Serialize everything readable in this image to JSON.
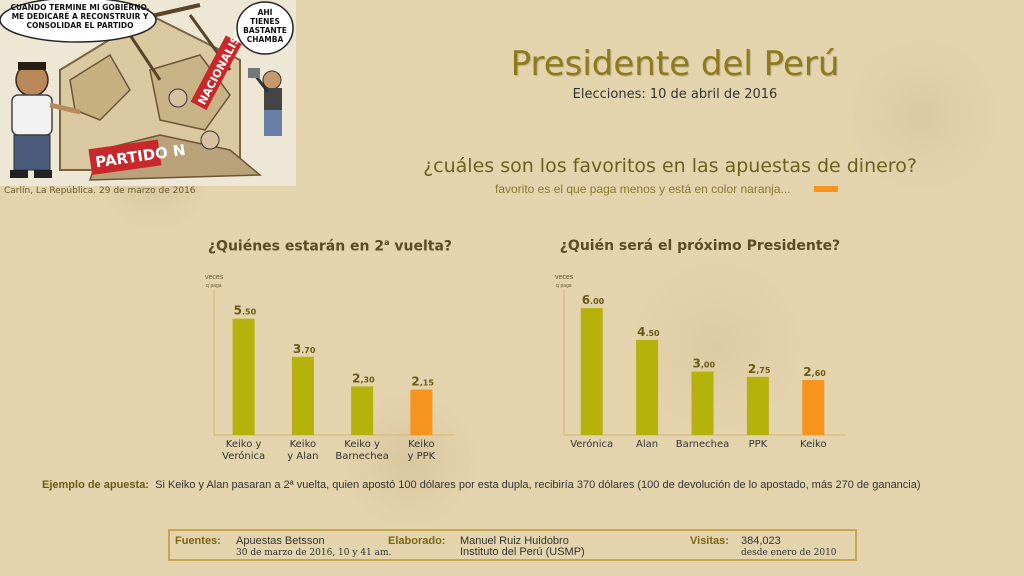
{
  "cartoon": {
    "speech_left": "CUANDO TERMINE MI GOBIERNO, ME DEDICARÉ A RECONSTRUIR Y CONSOLIDAR EL PARTIDO",
    "speech_right": "AHÍ TIENES BASTANTE CHAMBA",
    "sign_left": "PARTIDO N",
    "sign_right": "NACIONALISTA",
    "credit": "Carlín, La República. 29 de marzo de 2016"
  },
  "header": {
    "title": "Presidente del Perú",
    "subtitle": "Elecciones: 10 de abril de 2016",
    "question": "¿cuáles  son los  favoritos en las apuestas de dinero?",
    "note": "favorito es el que paga menos y está en color naranja...",
    "accent_color": "#f7941d",
    "bar_color": "#b5b20c"
  },
  "chart_data": [
    {
      "type": "bar",
      "title_main": "¿Quiénes estarán en 2",
      "title_sup": "a",
      "title_end": " vuelta?",
      "ylabel_top": "veces",
      "ylabel_bottom": "q´paga",
      "categories": [
        "Keiko y Verónica",
        "Keiko y Alan",
        "Keiko y Barnechea",
        "Keiko y PPK"
      ],
      "category_lines": [
        [
          "Keiko y",
          "Verónica"
        ],
        [
          "Keiko",
          "y Alan"
        ],
        [
          "Keiko y",
          "Barnechea"
        ],
        [
          "Keiko",
          "y PPK"
        ]
      ],
      "values": [
        5.5,
        3.7,
        2.3,
        2.15
      ],
      "value_labels": [
        [
          "5",
          ".50"
        ],
        [
          "3",
          ".70"
        ],
        [
          "2",
          ",30"
        ],
        [
          "2",
          ",15"
        ]
      ],
      "highlight": [
        false,
        false,
        false,
        true
      ],
      "ylim": [
        0,
        7
      ]
    },
    {
      "type": "bar",
      "title_main": "¿Quién será el próximo Presidente?",
      "title_sup": "",
      "title_end": "",
      "ylabel_top": "veces",
      "ylabel_bottom": "q´paga",
      "categories": [
        "Verónica",
        "Alan",
        "Barnechea",
        "PPK",
        "Keiko"
      ],
      "category_lines": [
        [
          "Verónica"
        ],
        [
          "Alan"
        ],
        [
          "Barnechea"
        ],
        [
          "PPK"
        ],
        [
          "Keiko"
        ]
      ],
      "values": [
        6.0,
        4.5,
        3.0,
        2.75,
        2.6
      ],
      "value_labels": [
        [
          "6",
          ".00"
        ],
        [
          "4",
          ".50"
        ],
        [
          "3",
          ",00"
        ],
        [
          "2",
          ",75"
        ],
        [
          "2",
          ",60"
        ]
      ],
      "highlight": [
        false,
        false,
        false,
        false,
        true
      ],
      "ylim": [
        0,
        7
      ]
    }
  ],
  "example": {
    "label": "Ejemplo de apuesta:",
    "text": "Si Keiko y Alan pasaran a 2ª vuelta, quien  apostó 100 dólares por esta dupla, recibiría  370 dólares (100  de devolución de lo apostado, más 270 de  ganancia)"
  },
  "footer": {
    "sources_label": "Fuentes:",
    "sources_value": "Apuestas Betsson",
    "sources_date": "30 de marzo de 2016,  10 y 41 am.",
    "made_label": "Elaborado:",
    "made_value": "Manuel Ruiz Huidobro",
    "made_org": "Instituto del Perú (USMP)",
    "visits_label": "Visitas:",
    "visits_value": "384,023",
    "visits_since": "desde enero de 2010"
  }
}
